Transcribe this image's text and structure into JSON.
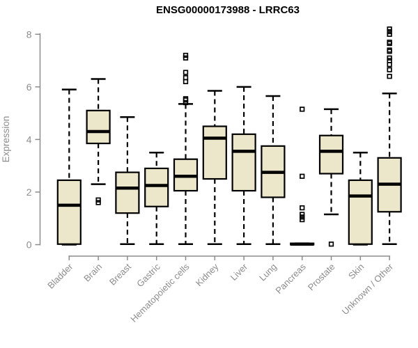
{
  "chart_data": {
    "type": "boxplot",
    "title": "ENSG00000173988 - LRRC63",
    "xlabel": "",
    "ylabel": "Expression",
    "ylim": [
      0,
      8.3
    ],
    "yticks": [
      0,
      2,
      4,
      6,
      8
    ],
    "grid": false,
    "legend": "none",
    "colors": {
      "box_fill": "#ece7cb",
      "box_stroke": "#000000",
      "median": "#000000",
      "axis": "#8c8c8c",
      "title_text": "#000000",
      "background": "#ffffff"
    },
    "categories": [
      "Bladder",
      "Brain",
      "Breast",
      "Gastric",
      "Hematopoietic cells",
      "Kidney",
      "Liver",
      "Lung",
      "Pancreas",
      "Prostate",
      "Skin",
      "Unknown / Other"
    ],
    "series": [
      {
        "name": "Bladder",
        "low": 0,
        "q1": 0.02,
        "median": 1.5,
        "q3": 2.45,
        "high": 5.9,
        "outliers": []
      },
      {
        "name": "Brain",
        "low": 2.3,
        "q1": 3.85,
        "median": 4.3,
        "q3": 5.1,
        "high": 6.3,
        "outliers": [
          1.7,
          1.6
        ]
      },
      {
        "name": "Breast",
        "low": 0.02,
        "q1": 1.2,
        "median": 2.15,
        "q3": 2.75,
        "high": 4.85,
        "outliers": []
      },
      {
        "name": "Gastric",
        "low": 0.02,
        "q1": 1.45,
        "median": 2.25,
        "q3": 2.9,
        "high": 3.5,
        "outliers": []
      },
      {
        "name": "Hematopoietic cells",
        "low": 0.02,
        "q1": 2.05,
        "median": 2.6,
        "q3": 3.25,
        "high": 5.35,
        "outliers": [
          7.2,
          7.1,
          6.55,
          6.35,
          6.2,
          5.55,
          5.5,
          5.4
        ]
      },
      {
        "name": "Kidney",
        "low": 0.02,
        "q1": 2.5,
        "median": 4.05,
        "q3": 4.5,
        "high": 5.85,
        "outliers": []
      },
      {
        "name": "Liver",
        "low": 0.02,
        "q1": 2.05,
        "median": 3.55,
        "q3": 4.2,
        "high": 6.0,
        "outliers": []
      },
      {
        "name": "Lung",
        "low": 0.02,
        "q1": 1.8,
        "median": 2.75,
        "q3": 3.75,
        "high": 5.65,
        "outliers": []
      },
      {
        "name": "Pancreas",
        "low": 0,
        "q1": 0,
        "median": 0.02,
        "q3": 0.05,
        "high": 0.05,
        "outliers": [
          5.15,
          2.6,
          1.4,
          1.15,
          1.05,
          0.95
        ]
      },
      {
        "name": "Prostate",
        "low": 1.15,
        "q1": 2.7,
        "median": 3.55,
        "q3": 4.15,
        "high": 5.15,
        "outliers": [
          0.02
        ]
      },
      {
        "name": "Skin",
        "low": 0,
        "q1": 0.02,
        "median": 1.85,
        "q3": 2.45,
        "high": 3.5,
        "outliers": []
      },
      {
        "name": "Unknown / Other",
        "low": 0.02,
        "q1": 1.25,
        "median": 2.3,
        "q3": 3.3,
        "high": 5.75,
        "outliers": [
          8.2,
          8.1,
          8.0,
          7.7,
          7.65,
          7.4,
          7.35,
          7.1,
          7.0,
          6.85,
          6.65,
          6.4
        ]
      }
    ]
  }
}
